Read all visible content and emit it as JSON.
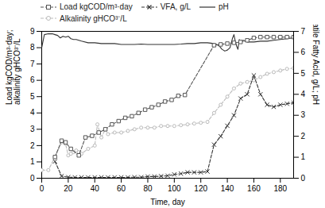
{
  "chart_data": {
    "type": "line",
    "xlabel": "Time, day",
    "ylabel": "Load kgCOD/m³·day;\nalkalinity gHCO³⁻/L",
    "y2label": "Volatile Fatty Acid, g/L; pH",
    "xlim": [
      0,
      190
    ],
    "xticks": [
      0,
      20,
      40,
      60,
      80,
      100,
      120,
      140,
      160,
      180
    ],
    "ylim": [
      0,
      9
    ],
    "yticks": [
      0,
      1,
      2,
      3,
      4,
      5,
      6,
      7,
      8,
      9
    ],
    "y2lim": [
      0,
      7
    ],
    "y2ticks": [
      0,
      1,
      2,
      3,
      4,
      5,
      6,
      7
    ],
    "grid": false,
    "legend": "upper left",
    "series": [
      {
        "name": "Load kgCOD/m³·day",
        "color": "#555555",
        "marker": "square",
        "line_style": "dashed",
        "axis": "y",
        "x": [
          10,
          15,
          18,
          22,
          28,
          33,
          38,
          43,
          48,
          53,
          58,
          63,
          68,
          73,
          78,
          83,
          88,
          93,
          98,
          103,
          108,
          130,
          135,
          140,
          145,
          150,
          155,
          160,
          165,
          170,
          175,
          180,
          185,
          190
        ],
        "values": [
          1.3,
          2.3,
          2.2,
          1.8,
          1.4,
          2.5,
          2.6,
          2.8,
          3.0,
          3.3,
          3.5,
          3.7,
          3.8,
          4.0,
          4.2,
          4.35,
          4.5,
          4.7,
          4.8,
          5.05,
          5.1,
          8.15,
          8.2,
          8.25,
          8.3,
          8.35,
          8.45,
          8.6,
          8.65,
          8.65,
          8.65,
          8.65,
          8.65,
          8.65
        ]
      },
      {
        "name": "VFA, g/L",
        "color": "#333333",
        "marker": "x",
        "line_style": "dashed",
        "axis": "y2",
        "x": [
          10,
          15,
          20,
          25,
          30,
          35,
          40,
          45,
          50,
          55,
          60,
          65,
          70,
          75,
          80,
          85,
          90,
          95,
          100,
          105,
          110,
          115,
          120,
          125,
          130,
          135,
          140,
          145,
          150,
          155,
          160,
          165,
          170,
          175,
          180,
          185,
          190
        ],
        "values": [
          0.8,
          0.1,
          0.05,
          0.04,
          0.04,
          0.04,
          0.04,
          0.04,
          0.04,
          0.04,
          0.04,
          0.04,
          0.05,
          0.05,
          0.08,
          0.08,
          0.1,
          0.12,
          0.18,
          0.22,
          0.28,
          0.28,
          0.28,
          0.32,
          1.6,
          2.0,
          2.5,
          3.0,
          3.8,
          4.0,
          4.9,
          4.0,
          3.5,
          3.4,
          3.5,
          3.55,
          3.6
        ]
      },
      {
        "name": "pH",
        "color": "#333333",
        "marker": "none",
        "line_style": "solid",
        "axis": "y",
        "x": [
          0,
          2,
          5,
          8,
          10,
          12,
          14,
          16,
          18,
          20,
          22,
          24,
          26,
          28,
          30,
          35,
          40,
          45,
          50,
          55,
          60,
          65,
          70,
          75,
          80,
          85,
          90,
          95,
          100,
          105,
          110,
          115,
          120,
          125,
          130,
          132,
          134,
          135,
          136,
          137,
          138,
          139,
          140,
          142,
          144,
          145,
          146,
          147,
          148,
          149,
          150,
          151,
          152,
          155,
          160,
          165,
          170,
          175,
          180,
          185,
          190
        ],
        "values": [
          8.0,
          8.8,
          8.85,
          8.85,
          8.8,
          8.75,
          8.6,
          8.7,
          8.65,
          8.7,
          8.55,
          8.5,
          8.5,
          8.45,
          8.4,
          8.3,
          8.3,
          8.25,
          8.25,
          8.25,
          8.2,
          8.2,
          8.2,
          8.22,
          8.2,
          8.2,
          8.2,
          8.2,
          8.2,
          8.22,
          8.25,
          8.25,
          8.3,
          8.3,
          8.25,
          8.2,
          8.1,
          8.0,
          7.9,
          7.85,
          7.8,
          7.82,
          7.85,
          8.0,
          8.6,
          8.8,
          8.4,
          8.1,
          7.9,
          8.5,
          8.3,
          8.4,
          8.45,
          8.35,
          8.35,
          8.4,
          8.4,
          8.45,
          8.5,
          8.55,
          8.6
        ]
      },
      {
        "name": "Alkalinity gHCO³⁻/L",
        "color": "#bbbbbb",
        "marker": "circle",
        "line_style": "dashed",
        "axis": "y",
        "x": [
          0,
          5,
          10,
          15,
          18,
          20,
          22,
          24,
          26,
          28,
          30,
          35,
          40,
          42,
          45,
          48,
          50,
          55,
          60,
          65,
          70,
          75,
          80,
          85,
          90,
          95,
          100,
          105,
          110,
          115,
          120,
          125,
          130,
          135,
          140,
          145,
          150,
          155,
          160,
          165,
          170,
          175,
          180,
          185,
          190
        ],
        "values": [
          0.5,
          0.5,
          1.3,
          2.2,
          2.1,
          1.4,
          1.5,
          1.6,
          1.7,
          1.6,
          1.5,
          1.8,
          2.0,
          3.3,
          2.5,
          3.0,
          2.7,
          2.8,
          2.8,
          2.9,
          3.0,
          3.1,
          3.1,
          3.1,
          3.2,
          3.2,
          3.2,
          3.25,
          3.3,
          3.35,
          3.4,
          3.45,
          4.0,
          4.5,
          5.0,
          5.5,
          5.8,
          5.9,
          6.0,
          6.2,
          6.4,
          6.5,
          6.6,
          6.7,
          6.75
        ]
      }
    ]
  }
}
